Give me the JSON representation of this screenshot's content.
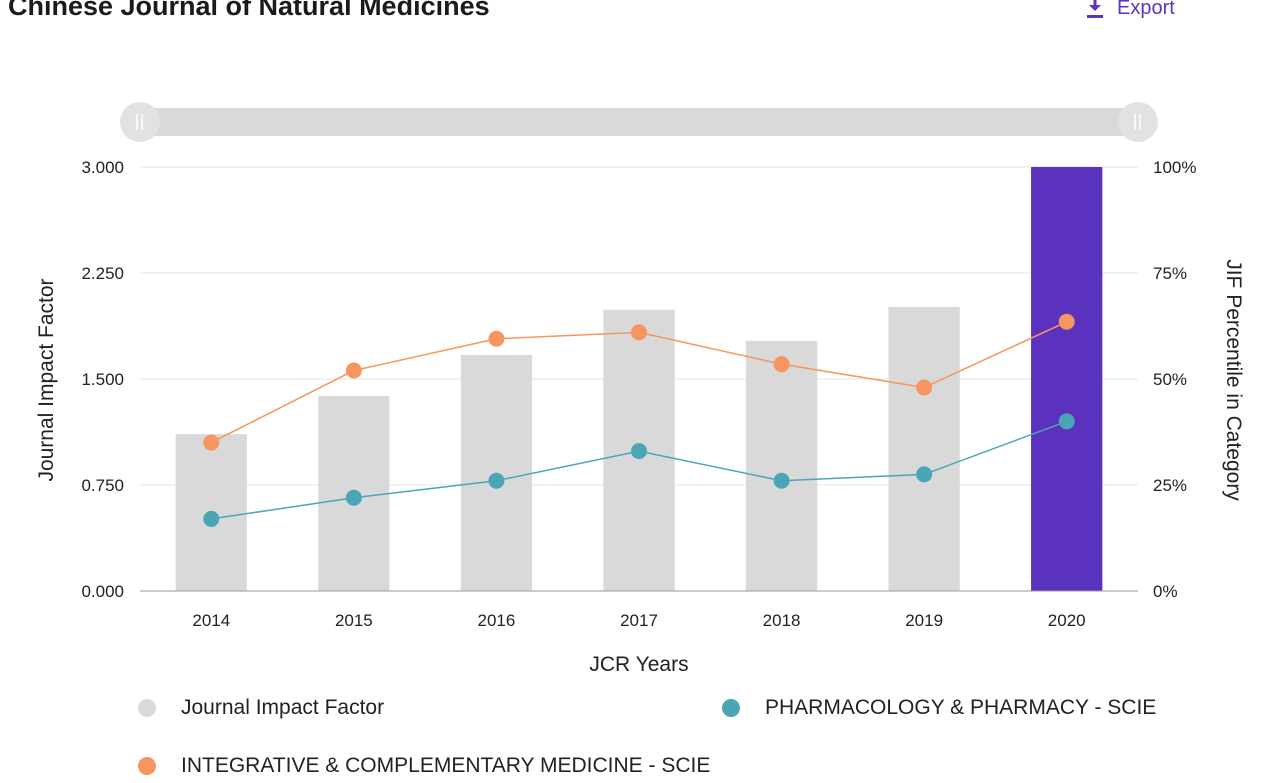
{
  "header": {
    "title": "Chinese Journal of Natural Medicines",
    "export_label": "Export"
  },
  "colors": {
    "bar": "#d9d9d9",
    "bar_highlight": "#5b32be",
    "pharmacology": "#4aa6b6",
    "integrative": "#f5955f",
    "slider_track": "#d9d9d9",
    "export": "#5e33bf"
  },
  "chart_data": {
    "type": "bar",
    "categories": [
      "2014",
      "2015",
      "2016",
      "2017",
      "2018",
      "2019",
      "2020"
    ],
    "xlabel": "JCR Years",
    "ylabel": "Journal Impact Factor",
    "y2label": "JIF Percentile in Category",
    "ylim": [
      0,
      3
    ],
    "y2lim": [
      0,
      100
    ],
    "yticks": [
      "0.000",
      "0.750",
      "1.500",
      "2.250",
      "3.000"
    ],
    "y2ticks": [
      "0%",
      "25%",
      "50%",
      "75%",
      "100%"
    ],
    "grid": true,
    "highlight_category": "2020",
    "series": [
      {
        "name": "Journal Impact Factor",
        "type": "bar",
        "axis": "left",
        "values": [
          1.11,
          1.38,
          1.67,
          1.99,
          1.77,
          2.01,
          3.0
        ]
      },
      {
        "name": "PHARMACOLOGY & PHARMACY - SCIE",
        "type": "line",
        "axis": "right",
        "values": [
          17,
          22,
          26,
          33,
          26,
          27.5,
          40
        ]
      },
      {
        "name": "INTEGRATIVE & COMPLEMENTARY MEDICINE - SCIE",
        "type": "line",
        "axis": "right",
        "values": [
          35,
          52,
          59.5,
          61,
          53.5,
          48,
          63.5
        ]
      }
    ],
    "legend_position": "bottom"
  }
}
